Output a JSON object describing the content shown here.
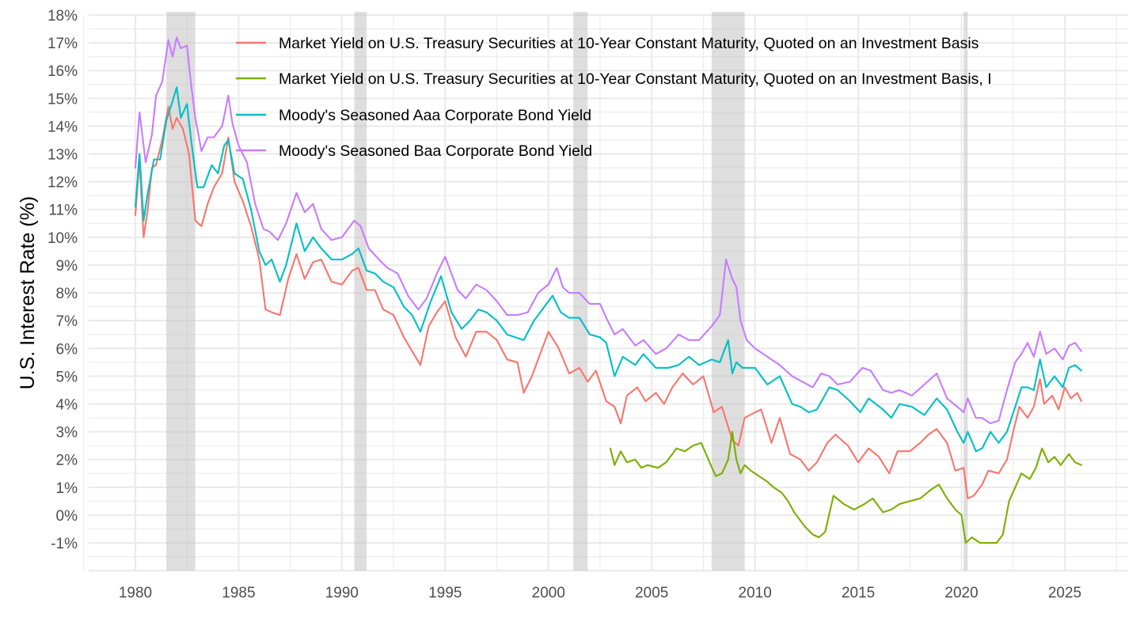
{
  "chart_data": {
    "type": "line",
    "title": "",
    "xlabel": "",
    "ylabel": "U.S. Interest Rate (%)",
    "xlim": [
      1975.5,
      2028
    ],
    "ylim": [
      -2,
      18
    ],
    "x_ticks": [
      1980,
      1985,
      1990,
      1995,
      2000,
      2005,
      2010,
      2015,
      2020,
      2025
    ],
    "x_tick_labels": [
      "1980",
      "1985",
      "1990",
      "1995",
      "2000",
      "2005",
      "2010",
      "2015",
      "2020",
      "2025"
    ],
    "y_ticks": [
      -1,
      0,
      1,
      2,
      3,
      4,
      5,
      6,
      7,
      8,
      9,
      10,
      11,
      12,
      13,
      14,
      15,
      16,
      17,
      18
    ],
    "y_tick_labels": [
      "-1%",
      "0%",
      "1%",
      "2%",
      "3%",
      "4%",
      "5%",
      "6%",
      "7%",
      "8%",
      "9%",
      "10%",
      "11%",
      "12%",
      "13%",
      "14%",
      "15%",
      "16%",
      "17%",
      "18%"
    ],
    "grid": true,
    "legend_position": "top-right",
    "recessions": [
      {
        "start": 1981.5,
        "end": 1982.9
      },
      {
        "start": 1990.6,
        "end": 1991.2
      },
      {
        "start": 2001.2,
        "end": 2001.9
      },
      {
        "start": 2007.9,
        "end": 2009.5
      },
      {
        "start": 2020.1,
        "end": 2020.3
      }
    ],
    "series": [
      {
        "name": "Market Yield on U.S. Treasury Securities at 10-Year Constant Maturity, Quoted on an Investment Basis",
        "color": "#F8766D",
        "x": [
          1980.0,
          1980.2,
          1980.4,
          1980.6,
          1980.8,
          1981.0,
          1981.3,
          1981.6,
          1981.8,
          1982.0,
          1982.3,
          1982.6,
          1982.9,
          1983.2,
          1983.5,
          1983.8,
          1984.2,
          1984.5,
          1984.8,
          1985.2,
          1985.6,
          1986.0,
          1986.3,
          1986.6,
          1987.0,
          1987.4,
          1987.8,
          1988.2,
          1988.6,
          1989.0,
          1989.5,
          1990.0,
          1990.5,
          1990.8,
          1991.2,
          1991.6,
          1992.0,
          1992.5,
          1993.0,
          1993.4,
          1993.8,
          1994.2,
          1994.6,
          1995.0,
          1995.5,
          1996.0,
          1996.5,
          1997.0,
          1997.5,
          1998.0,
          1998.5,
          1998.8,
          1999.2,
          1999.6,
          2000.0,
          2000.5,
          2001.0,
          2001.5,
          2001.9,
          2002.3,
          2002.8,
          2003.2,
          2003.5,
          2003.8,
          2004.3,
          2004.7,
          2005.2,
          2005.6,
          2006.0,
          2006.5,
          2007.0,
          2007.5,
          2008.0,
          2008.4,
          2008.9,
          2009.2,
          2009.5,
          2010.0,
          2010.3,
          2010.8,
          2011.2,
          2011.7,
          2012.2,
          2012.6,
          2013.0,
          2013.5,
          2013.9,
          2014.5,
          2015.0,
          2015.5,
          2016.0,
          2016.5,
          2016.9,
          2017.5,
          2018.0,
          2018.4,
          2018.8,
          2019.3,
          2019.7,
          2020.1,
          2020.3,
          2020.6,
          2021.0,
          2021.3,
          2021.8,
          2022.2,
          2022.5,
          2022.8,
          2023.2,
          2023.5,
          2023.8,
          2024.0,
          2024.4,
          2024.7,
          2025.0,
          2025.3,
          2025.6,
          2025.8
        ],
        "y": [
          10.8,
          12.8,
          10.0,
          11.0,
          12.5,
          12.6,
          13.5,
          14.7,
          13.9,
          14.3,
          13.9,
          13.0,
          10.6,
          10.4,
          11.2,
          11.8,
          12.3,
          13.6,
          12.0,
          11.3,
          10.4,
          9.2,
          7.4,
          7.3,
          7.2,
          8.5,
          9.4,
          8.5,
          9.1,
          9.2,
          8.4,
          8.3,
          8.8,
          8.9,
          8.1,
          8.1,
          7.4,
          7.2,
          6.4,
          5.9,
          5.4,
          6.8,
          7.3,
          7.7,
          6.4,
          5.7,
          6.6,
          6.6,
          6.3,
          5.6,
          5.5,
          4.4,
          5.0,
          5.8,
          6.6,
          6.0,
          5.1,
          5.3,
          4.8,
          5.2,
          4.1,
          3.9,
          3.3,
          4.3,
          4.6,
          4.1,
          4.4,
          4.0,
          4.6,
          5.1,
          4.7,
          5.0,
          3.7,
          3.9,
          2.7,
          2.5,
          3.5,
          3.7,
          3.8,
          2.6,
          3.5,
          2.2,
          2.0,
          1.6,
          1.9,
          2.6,
          2.9,
          2.5,
          1.9,
          2.4,
          2.1,
          1.5,
          2.3,
          2.3,
          2.6,
          2.9,
          3.1,
          2.6,
          1.6,
          1.7,
          0.6,
          0.7,
          1.1,
          1.6,
          1.5,
          2.0,
          3.0,
          3.9,
          3.5,
          3.9,
          4.9,
          4.0,
          4.3,
          3.8,
          4.6,
          4.2,
          4.4,
          4.1
        ]
      },
      {
        "name": "Market Yield on U.S. Treasury Securities at 10-Year Constant Maturity, Quoted on an Investment Basis, Inflation-Indexed",
        "legend_label": "Market Yield on U.S. Treasury Securities at 10-Year Constant Maturity, Quoted on an Investment Basis, I",
        "color": "#7CAE00",
        "x": [
          2003.0,
          2003.2,
          2003.5,
          2003.8,
          2004.2,
          2004.5,
          2004.8,
          2005.3,
          2005.7,
          2006.2,
          2006.6,
          2007.0,
          2007.4,
          2007.8,
          2008.1,
          2008.4,
          2008.7,
          2008.9,
          2009.1,
          2009.3,
          2009.5,
          2009.8,
          2010.2,
          2010.6,
          2010.9,
          2011.3,
          2011.6,
          2011.9,
          2012.4,
          2012.8,
          2013.1,
          2013.4,
          2013.8,
          2014.3,
          2014.8,
          2015.3,
          2015.7,
          2016.2,
          2016.6,
          2017.0,
          2017.5,
          2018.0,
          2018.5,
          2018.9,
          2019.3,
          2019.7,
          2020.0,
          2020.2,
          2020.5,
          2020.9,
          2021.3,
          2021.7,
          2022.0,
          2022.3,
          2022.6,
          2022.9,
          2023.3,
          2023.6,
          2023.9,
          2024.2,
          2024.5,
          2024.8,
          2025.2,
          2025.5,
          2025.8
        ],
        "y": [
          2.4,
          1.8,
          2.3,
          1.9,
          2.0,
          1.7,
          1.8,
          1.7,
          1.9,
          2.4,
          2.3,
          2.5,
          2.6,
          1.9,
          1.4,
          1.5,
          2.0,
          3.0,
          2.0,
          1.5,
          1.8,
          1.6,
          1.4,
          1.2,
          1.0,
          0.8,
          0.5,
          0.1,
          -0.4,
          -0.7,
          -0.8,
          -0.6,
          0.7,
          0.4,
          0.2,
          0.4,
          0.6,
          0.1,
          0.2,
          0.4,
          0.5,
          0.6,
          0.9,
          1.1,
          0.6,
          0.2,
          0.0,
          -1.0,
          -0.8,
          -1.0,
          -1.0,
          -1.0,
          -0.7,
          0.5,
          1.0,
          1.5,
          1.3,
          1.7,
          2.4,
          1.9,
          2.1,
          1.8,
          2.2,
          1.9,
          1.8
        ]
      },
      {
        "name": "Moody's Seasoned Aaa Corporate Bond Yield",
        "color": "#00BFC4",
        "x": [
          1980.0,
          1980.2,
          1980.4,
          1980.6,
          1980.9,
          1981.2,
          1981.5,
          1981.8,
          1982.0,
          1982.2,
          1982.5,
          1982.7,
          1983.0,
          1983.3,
          1983.7,
          1984.0,
          1984.3,
          1984.5,
          1984.8,
          1985.2,
          1985.6,
          1986.0,
          1986.3,
          1986.6,
          1987.0,
          1987.3,
          1987.8,
          1988.2,
          1988.6,
          1989.0,
          1989.5,
          1990.0,
          1990.5,
          1990.8,
          1991.2,
          1991.6,
          1992.0,
          1992.5,
          1993.0,
          1993.4,
          1993.8,
          1994.3,
          1994.8,
          1995.3,
          1995.8,
          1996.2,
          1996.6,
          1997.0,
          1997.5,
          1998.0,
          1998.8,
          1999.3,
          1999.8,
          2000.2,
          2000.6,
          2001.0,
          2001.5,
          2002.0,
          2002.5,
          2002.8,
          2003.2,
          2003.6,
          2004.2,
          2004.6,
          2005.2,
          2005.8,
          2006.3,
          2006.8,
          2007.3,
          2007.9,
          2008.3,
          2008.7,
          2008.9,
          2009.1,
          2009.4,
          2009.6,
          2010.0,
          2010.6,
          2011.2,
          2011.8,
          2012.2,
          2012.6,
          2013.0,
          2013.6,
          2014.0,
          2014.6,
          2015.1,
          2015.5,
          2016.2,
          2016.6,
          2017.0,
          2017.6,
          2018.2,
          2018.8,
          2019.3,
          2019.8,
          2020.1,
          2020.3,
          2020.7,
          2021.0,
          2021.4,
          2021.8,
          2022.2,
          2022.6,
          2022.9,
          2023.2,
          2023.5,
          2023.8,
          2024.1,
          2024.5,
          2024.9,
          2025.2,
          2025.5,
          2025.8
        ],
        "y": [
          11.1,
          13.0,
          10.6,
          11.6,
          12.8,
          12.8,
          14.2,
          14.9,
          15.4,
          14.3,
          14.8,
          13.5,
          11.8,
          11.8,
          12.6,
          12.3,
          13.3,
          13.5,
          12.3,
          12.1,
          11.0,
          9.5,
          9.0,
          9.2,
          8.4,
          9.0,
          10.5,
          9.5,
          10.0,
          9.6,
          9.2,
          9.2,
          9.4,
          9.6,
          8.8,
          8.7,
          8.4,
          8.2,
          7.5,
          7.2,
          6.6,
          7.7,
          8.6,
          7.3,
          6.7,
          7.0,
          7.4,
          7.3,
          7.0,
          6.5,
          6.3,
          7.0,
          7.5,
          7.9,
          7.3,
          7.1,
          7.1,
          6.5,
          6.4,
          6.2,
          5.0,
          5.7,
          5.4,
          5.8,
          5.3,
          5.3,
          5.4,
          5.7,
          5.4,
          5.6,
          5.5,
          6.3,
          5.1,
          5.5,
          5.3,
          5.3,
          5.3,
          4.7,
          5.0,
          4.0,
          3.9,
          3.7,
          3.8,
          4.6,
          4.5,
          4.1,
          3.7,
          4.2,
          3.8,
          3.5,
          4.0,
          3.9,
          3.6,
          4.2,
          3.8,
          3.0,
          2.6,
          3.0,
          2.3,
          2.4,
          3.0,
          2.6,
          3.0,
          3.9,
          4.6,
          4.6,
          4.5,
          5.6,
          4.6,
          5.0,
          4.6,
          5.3,
          5.4,
          5.2
        ]
      },
      {
        "name": "Moody's Seasoned Baa Corporate Bond Yield",
        "color": "#C77CFF",
        "x": [
          1980.0,
          1980.2,
          1980.5,
          1980.8,
          1981.0,
          1981.3,
          1981.6,
          1981.8,
          1982.0,
          1982.2,
          1982.5,
          1982.7,
          1982.9,
          1983.2,
          1983.5,
          1983.8,
          1984.2,
          1984.5,
          1984.7,
          1985.0,
          1985.4,
          1985.8,
          1986.2,
          1986.5,
          1986.9,
          1987.3,
          1987.8,
          1988.2,
          1988.6,
          1989.0,
          1989.5,
          1990.0,
          1990.6,
          1990.9,
          1991.3,
          1991.8,
          1992.2,
          1992.7,
          1993.2,
          1993.7,
          1994.1,
          1994.6,
          1995.0,
          1995.6,
          1996.0,
          1996.5,
          1997.0,
          1997.5,
          1998.0,
          1998.5,
          1999.0,
          1999.5,
          2000.0,
          2000.4,
          2000.7,
          2001.0,
          2001.5,
          2002.0,
          2002.5,
          2002.8,
          2003.2,
          2003.6,
          2004.2,
          2004.6,
          2005.2,
          2005.7,
          2006.3,
          2006.8,
          2007.3,
          2007.9,
          2008.3,
          2008.6,
          2008.9,
          2009.1,
          2009.3,
          2009.6,
          2010.0,
          2010.6,
          2011.2,
          2011.8,
          2012.3,
          2012.8,
          2013.2,
          2013.6,
          2014.0,
          2014.6,
          2015.2,
          2015.6,
          2016.2,
          2016.6,
          2017.0,
          2017.6,
          2018.2,
          2018.8,
          2019.3,
          2019.8,
          2020.1,
          2020.3,
          2020.7,
          2021.0,
          2021.4,
          2021.8,
          2022.2,
          2022.6,
          2022.9,
          2023.2,
          2023.5,
          2023.8,
          2024.1,
          2024.5,
          2024.9,
          2025.2,
          2025.5,
          2025.8
        ],
        "y": [
          12.5,
          14.5,
          12.7,
          13.7,
          15.1,
          15.6,
          17.1,
          16.5,
          17.2,
          16.8,
          16.9,
          15.5,
          14.3,
          13.1,
          13.6,
          13.6,
          14.0,
          15.1,
          14.1,
          13.3,
          12.7,
          11.2,
          10.3,
          10.2,
          9.9,
          10.5,
          11.6,
          10.9,
          11.2,
          10.3,
          9.9,
          10.0,
          10.6,
          10.4,
          9.6,
          9.2,
          8.9,
          8.7,
          7.9,
          7.4,
          7.8,
          8.7,
          9.3,
          8.1,
          7.8,
          8.3,
          8.1,
          7.7,
          7.2,
          7.2,
          7.3,
          8.0,
          8.3,
          8.9,
          8.2,
          8.0,
          8.0,
          7.6,
          7.6,
          7.1,
          6.5,
          6.7,
          6.1,
          6.3,
          5.8,
          6.0,
          6.5,
          6.3,
          6.3,
          6.8,
          7.2,
          9.2,
          8.5,
          8.2,
          7.0,
          6.3,
          6.0,
          5.7,
          5.4,
          5.0,
          4.8,
          4.6,
          5.1,
          5.0,
          4.7,
          4.8,
          5.3,
          5.2,
          4.5,
          4.4,
          4.5,
          4.3,
          4.7,
          5.1,
          4.2,
          3.9,
          3.7,
          4.2,
          3.5,
          3.5,
          3.3,
          3.4,
          4.5,
          5.5,
          5.8,
          6.2,
          5.7,
          6.6,
          5.8,
          6.0,
          5.6,
          6.1,
          6.2,
          5.9
        ]
      }
    ]
  }
}
